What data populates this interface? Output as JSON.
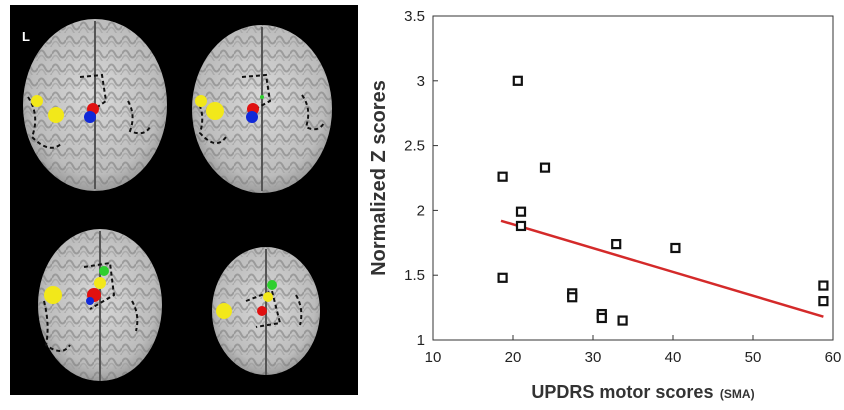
{
  "brain_panel": {
    "corner_label": "L",
    "views": [
      {
        "name": "axial-slice-top-left"
      },
      {
        "name": "axial-slice-top-right"
      },
      {
        "name": "axial-slice-bottom-left"
      },
      {
        "name": "axial-slice-bottom-right"
      }
    ],
    "colors": {
      "yellow": "#f2e81a",
      "red": "#e01010",
      "blue": "#1028d8",
      "green": "#2fcf2f"
    }
  },
  "chart_data": {
    "type": "scatter",
    "title": "",
    "xlabel": "UPDRS motor scores",
    "xlabel_suffix": "(SMA)",
    "ylabel": "Normalized Z scores",
    "xlim": [
      10,
      60
    ],
    "ylim": [
      1,
      3.5
    ],
    "xticks": [
      "10",
      "20",
      "30",
      "40",
      "50",
      "60"
    ],
    "yticks": [
      "1",
      "1.5",
      "2",
      "2.5",
      "3",
      "3.5"
    ],
    "points": [
      {
        "x": 18.7,
        "y": 2.26
      },
      {
        "x": 18.7,
        "y": 1.48
      },
      {
        "x": 20.6,
        "y": 3.0
      },
      {
        "x": 21.0,
        "y": 1.99
      },
      {
        "x": 21.0,
        "y": 1.88
      },
      {
        "x": 24.0,
        "y": 2.33
      },
      {
        "x": 27.4,
        "y": 1.36
      },
      {
        "x": 27.4,
        "y": 1.33
      },
      {
        "x": 31.1,
        "y": 1.2
      },
      {
        "x": 31.1,
        "y": 1.17
      },
      {
        "x": 32.9,
        "y": 1.74
      },
      {
        "x": 33.7,
        "y": 1.15
      },
      {
        "x": 40.3,
        "y": 1.71
      },
      {
        "x": 58.8,
        "y": 1.42
      },
      {
        "x": 58.8,
        "y": 1.3
      }
    ],
    "fit_line": {
      "x": [
        18.5,
        58.8
      ],
      "y": [
        1.92,
        1.18
      ],
      "color": "#d42a2a"
    },
    "marker_color": "#111111",
    "grid": false
  }
}
